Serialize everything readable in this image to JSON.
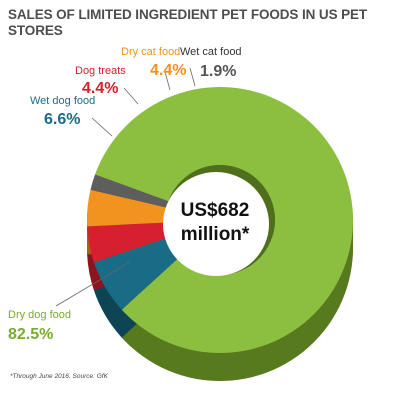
{
  "title": "SALES OF LIMITED INGREDIENT PET FOODS IN US PET STORES",
  "footnote": "*Through June 2016. Source: GfK",
  "chart_data": {
    "type": "pie",
    "style": "donut-3d",
    "center_label": [
      "US$682",
      "million*"
    ],
    "slices": [
      {
        "name": "Dry dog food",
        "value": 82.5,
        "label": "82.5%",
        "color": "#8cbf3f",
        "side_color": "#577a1f"
      },
      {
        "name": "Wet dog food",
        "value": 6.6,
        "label": "6.6%",
        "color": "#1a6c86",
        "side_color": "#0e4555"
      },
      {
        "name": "Dog treats",
        "value": 4.4,
        "label": "4.4%",
        "color": "#d6202f",
        "side_color": "#8c1520"
      },
      {
        "name": "Dry cat food",
        "value": 4.4,
        "label": "4.4%",
        "color": "#f2931f",
        "side_color": "#a8620f"
      },
      {
        "name": "Wet cat food",
        "value": 1.9,
        "label": "1.9%",
        "color": "#5e5e5e",
        "side_color": "#3a3a3a"
      }
    ]
  }
}
